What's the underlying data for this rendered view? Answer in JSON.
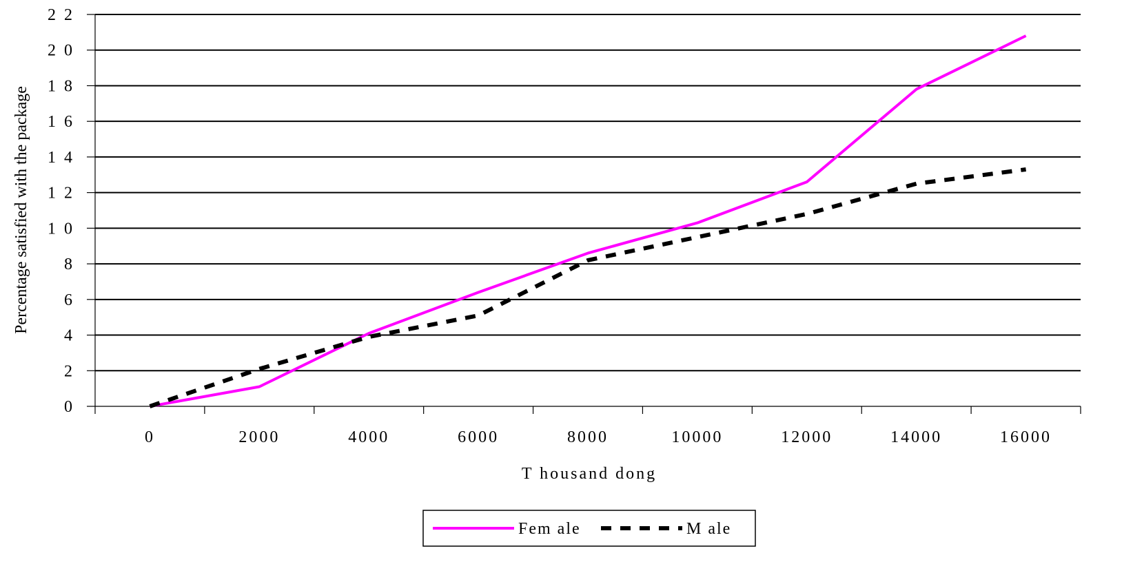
{
  "chart_data": {
    "type": "line",
    "xlabel": "T housand dong",
    "ylabel": "Percentage satisfied with the package",
    "x": [
      0,
      2000,
      4000,
      6000,
      8000,
      10000,
      12000,
      14000,
      16000
    ],
    "x_tick_labels": [
      "0",
      "2000",
      "4000",
      "6000",
      "8000",
      "10000",
      "12000",
      "14000",
      "16000"
    ],
    "y_tick_labels": [
      "0",
      "2",
      "4",
      "6",
      "8",
      "1 0",
      "1 2",
      "1 4",
      "1 6",
      "1 8",
      "2 0",
      "2 2"
    ],
    "y_ticks": [
      0,
      2,
      4,
      6,
      8,
      10,
      12,
      14,
      16,
      18,
      20,
      22
    ],
    "ylim": [
      0,
      22
    ],
    "grid": true,
    "legend_position": "bottom",
    "series": [
      {
        "name": "Fem ale",
        "color": "#ff00ff",
        "style": "solid",
        "values": [
          0,
          1.1,
          4.1,
          6.4,
          8.6,
          10.3,
          12.6,
          17.8,
          20.8
        ]
      },
      {
        "name": "M ale",
        "color": "#000000",
        "style": "dashed",
        "values": [
          0,
          2.1,
          3.9,
          5.1,
          8.2,
          9.5,
          10.8,
          12.5,
          13.3
        ]
      }
    ]
  }
}
